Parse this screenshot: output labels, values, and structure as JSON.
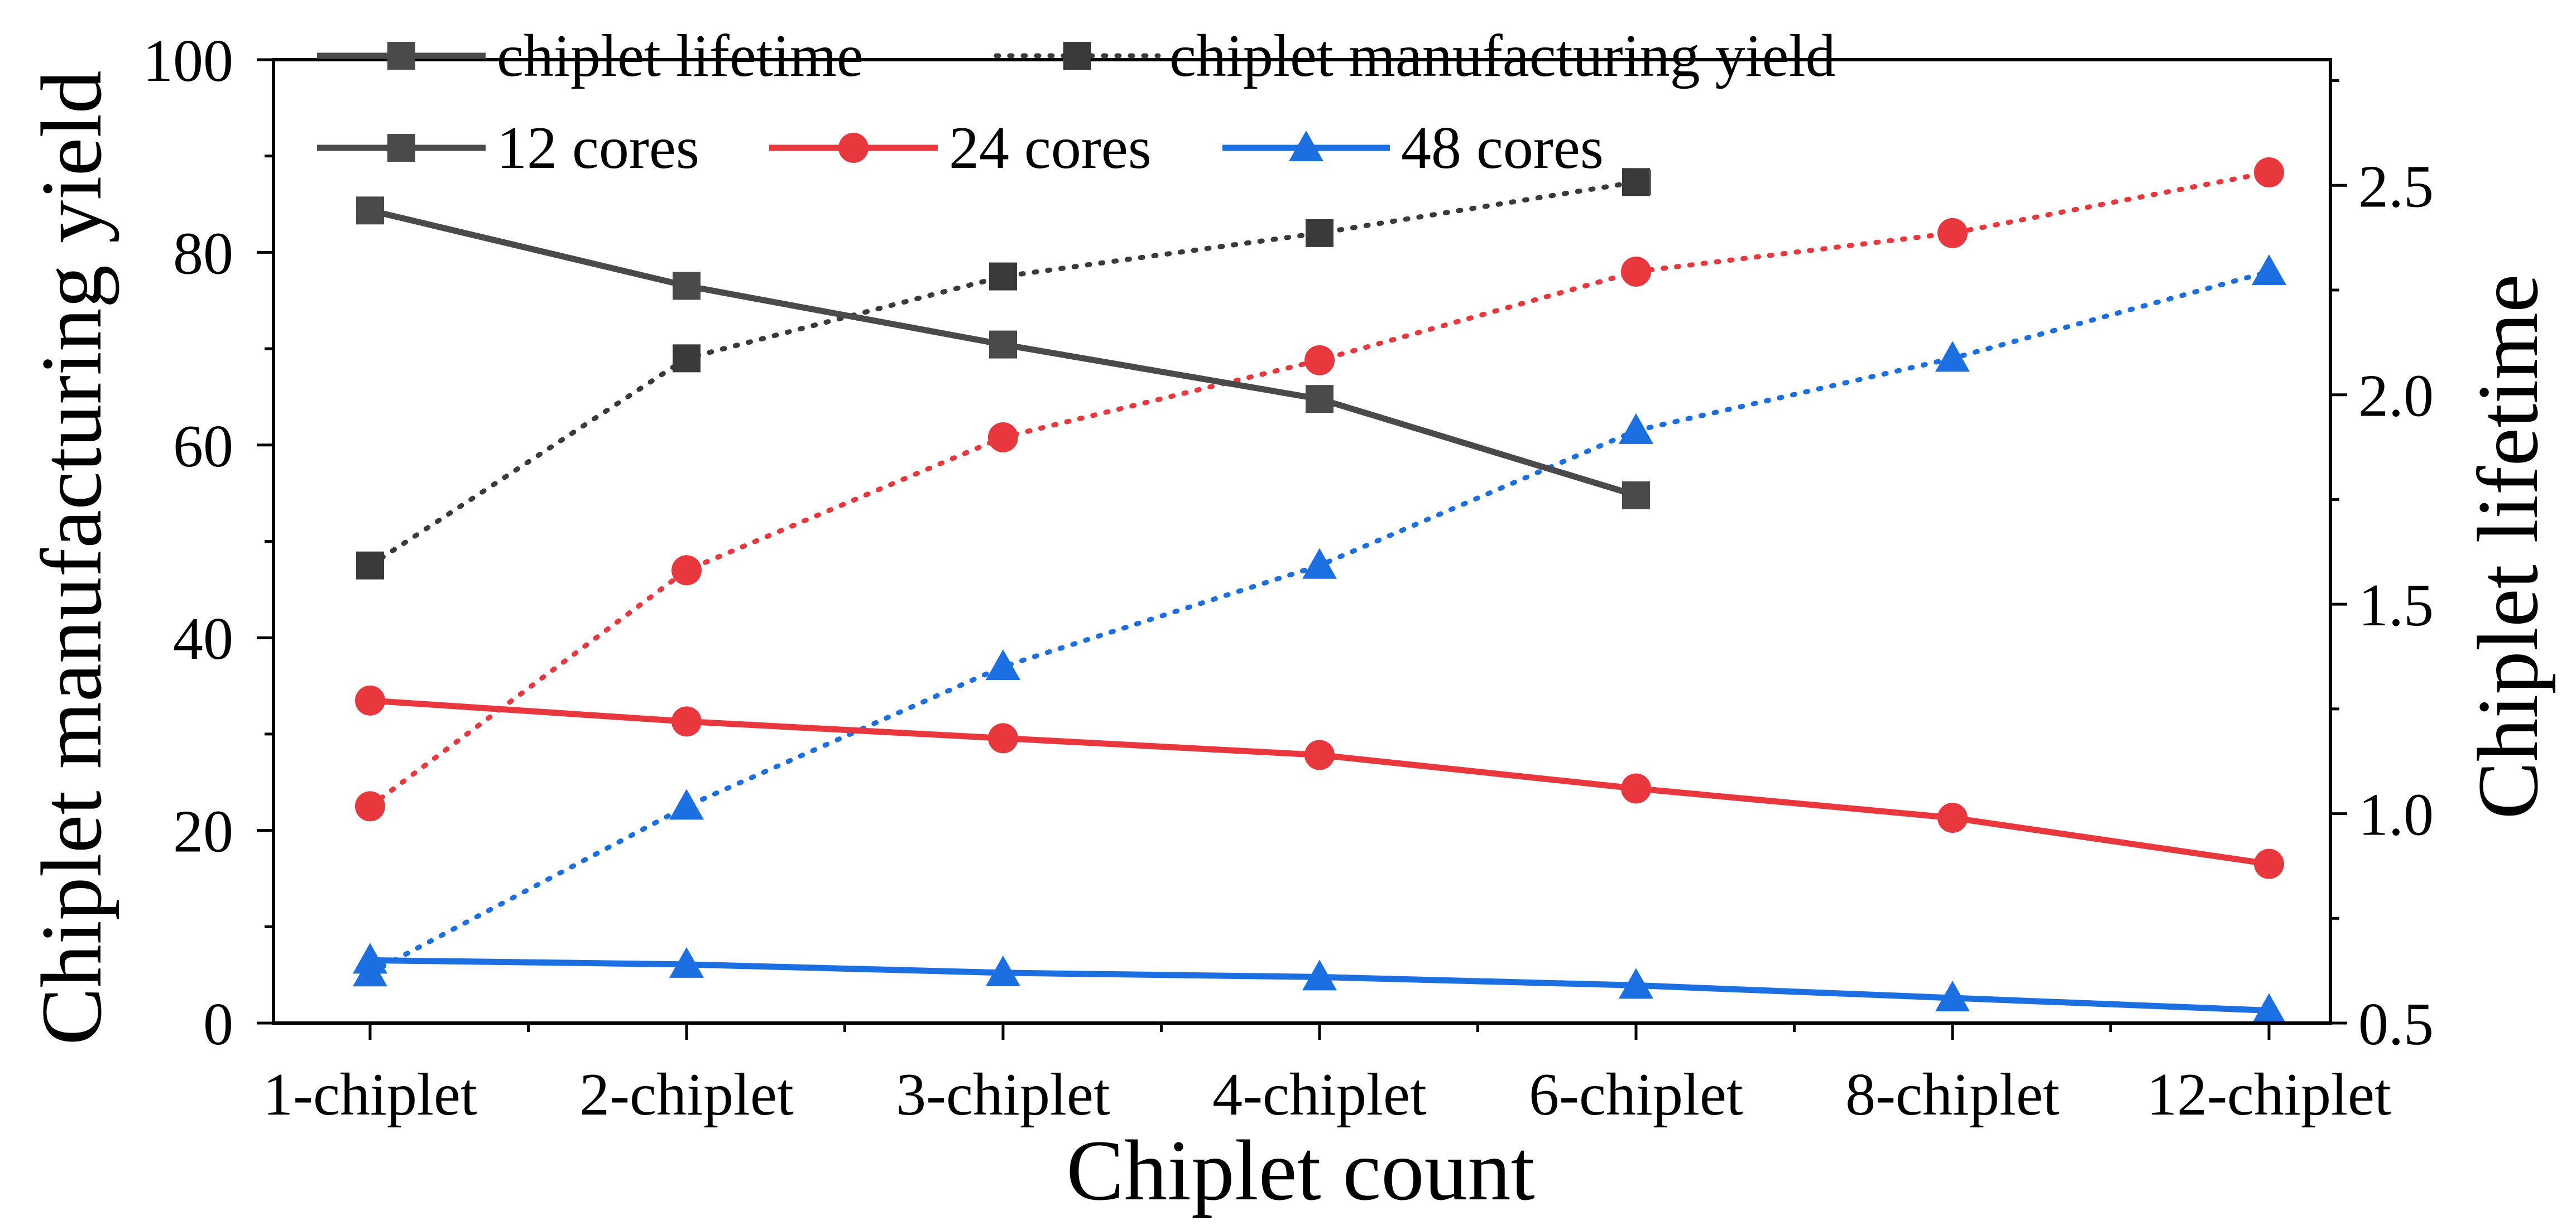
{
  "chart_data": {
    "type": "line",
    "xlabel": "Chiplet count",
    "ylabel_left": "Chiplet manufacturing yield",
    "ylabel_right": "Chiplet lifetime",
    "categories": [
      "1-chiplet",
      "2-chiplet",
      "3-chiplet",
      "4-chiplet",
      "6-chiplet",
      "8-chiplet",
      "12-chiplet"
    ],
    "ylim_left": [
      0,
      100
    ],
    "yticks_left": [
      "0",
      "20",
      "40",
      "60",
      "80",
      "100"
    ],
    "ylim_right": [
      0.5,
      2.8
    ],
    "yticks_right": [
      "0.5",
      "1.0",
      "1.5",
      "2.0",
      "2.5"
    ],
    "legend": {
      "metric_lifetime": "chiplet lifetime",
      "metric_yield": "chiplet manufacturing yield",
      "cores12": "12 cores",
      "cores24": "24 cores",
      "cores48": "48 cores"
    },
    "series": [
      {
        "name": "12 cores",
        "metric": "yield",
        "axis": "left",
        "style": "dotted",
        "marker": "square",
        "color": "#3a3a3a",
        "values": [
          47.5,
          69,
          77.5,
          82,
          87.3,
          null,
          null
        ]
      },
      {
        "name": "12 cores",
        "metric": "lifetime",
        "axis": "right",
        "style": "solid",
        "marker": "square",
        "color": "#4a4a4a",
        "values": [
          2.44,
          2.26,
          2.12,
          1.99,
          1.76,
          null,
          null
        ]
      },
      {
        "name": "24 cores",
        "metric": "yield",
        "axis": "left",
        "style": "dotted",
        "marker": "circle",
        "color": "#e8383d",
        "values": [
          22.5,
          47,
          60.8,
          68.8,
          78,
          82,
          88.3
        ]
      },
      {
        "name": "24 cores",
        "metric": "lifetime",
        "axis": "right",
        "style": "solid",
        "marker": "circle",
        "color": "#e8383d",
        "values": [
          1.27,
          1.22,
          1.18,
          1.14,
          1.06,
          0.99,
          0.88
        ]
      },
      {
        "name": "48 cores",
        "metric": "yield",
        "axis": "left",
        "style": "dotted",
        "marker": "triangle",
        "color": "#1b6fe0",
        "values": [
          5.2,
          22.5,
          37,
          47.5,
          61.5,
          69,
          78
        ]
      },
      {
        "name": "48 cores",
        "metric": "lifetime",
        "axis": "right",
        "style": "solid",
        "marker": "triangle",
        "color": "#1b6fe0",
        "values": [
          0.65,
          0.64,
          0.62,
          0.61,
          0.59,
          0.56,
          0.53
        ]
      }
    ]
  }
}
